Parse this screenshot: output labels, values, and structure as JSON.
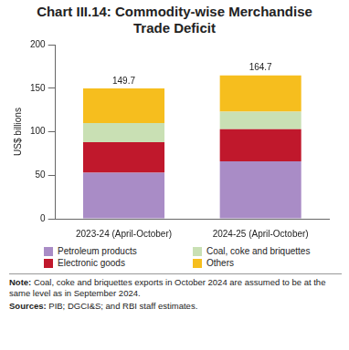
{
  "chart_data": {
    "type": "bar",
    "title": "Chart III.14: Commodity-wise Merchandise Trade Deficit",
    "y_label": "US$ billions",
    "categories": [
      "2023-24 (April-October)",
      "2024-25 (April-October)"
    ],
    "series": [
      {
        "name": "Petroleum products",
        "color": "#a98cc6",
        "values": [
          53,
          66
        ]
      },
      {
        "name": "Electronic goods",
        "color": "#c0182c",
        "values": [
          35,
          37
        ]
      },
      {
        "name": "Coal, coke and briquettes",
        "color": "#c9e0b4",
        "values": [
          22,
          20
        ]
      },
      {
        "name": "Others",
        "color": "#f6be1e",
        "values": [
          39.7,
          41.7
        ]
      }
    ],
    "totals": [
      149.7,
      164.7
    ],
    "stacked": true,
    "ylim": [
      0,
      200
    ],
    "yticks": [
      0,
      50,
      100,
      150,
      200
    ],
    "grid": false,
    "notes": [
      "Note: Coal, coke and briquettes exports in October 2024 are assumed to be at the same level as in September 2024.",
      "Sources: PIB; DGCI&S; and RBI staff estimates."
    ]
  }
}
